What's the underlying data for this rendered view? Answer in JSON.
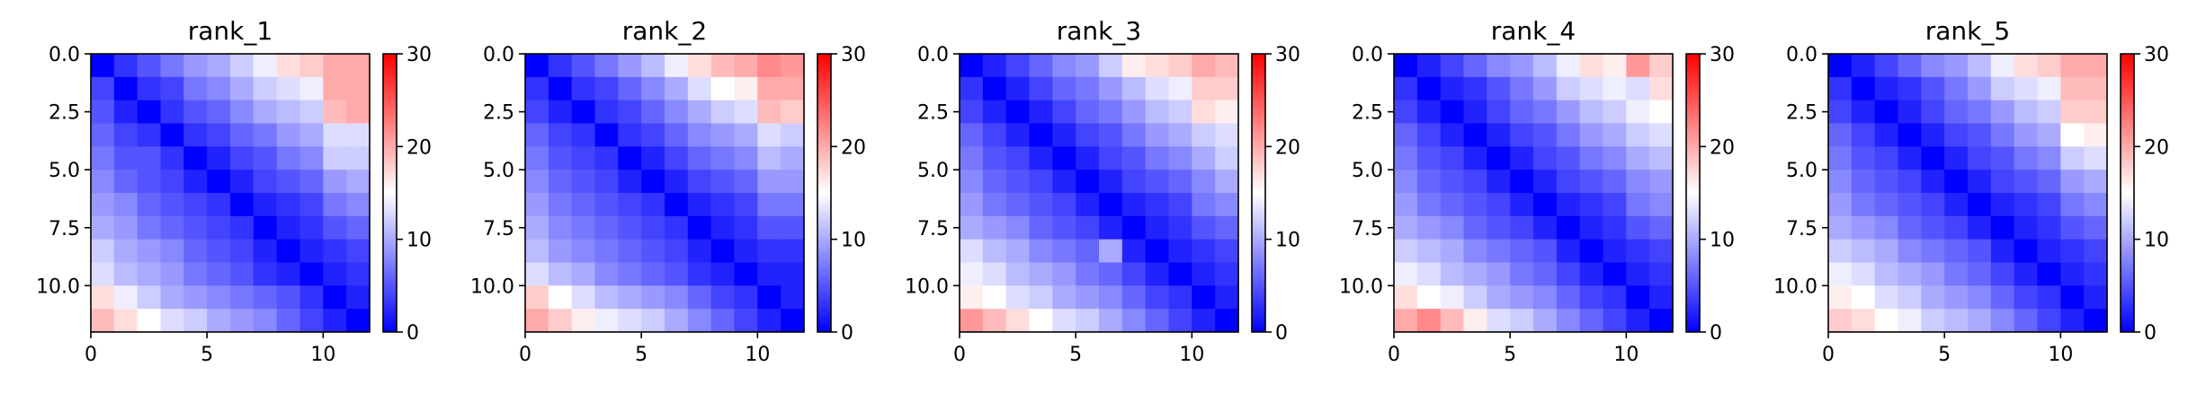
{
  "chart_data": {
    "type": "heatmap",
    "colormap": [
      "#0000ff",
      "#ffffff",
      "#ff0000"
    ],
    "color_range": [
      0,
      30
    ],
    "colorbar_ticks": [
      0,
      10,
      20,
      30
    ],
    "x_ticks": [
      0,
      5,
      10
    ],
    "y_ticks": [
      "0.0",
      "2.5",
      "5.0",
      "7.5",
      "10.0"
    ],
    "extent": [
      0,
      12,
      0,
      12
    ],
    "panels": [
      {
        "title": "rank_1",
        "matrix": [
          [
            0,
            3,
            5,
            7,
            9,
            10,
            12,
            14,
            17,
            18,
            20,
            20
          ],
          [
            4,
            0,
            3,
            4,
            7,
            8,
            10,
            12,
            13,
            14,
            20,
            20
          ],
          [
            5,
            2,
            0,
            3,
            5,
            6,
            8,
            10,
            11,
            12,
            19,
            20
          ],
          [
            6,
            4,
            3,
            0,
            3,
            4,
            6,
            7,
            9,
            10,
            13,
            13
          ],
          [
            7,
            5,
            5,
            3,
            0,
            2,
            4,
            5,
            7,
            8,
            12,
            12
          ],
          [
            8,
            6,
            5,
            4,
            2,
            0,
            2,
            4,
            5,
            6,
            9,
            10
          ],
          [
            9,
            8,
            6,
            5,
            4,
            3,
            0,
            2,
            3,
            4,
            7,
            8
          ],
          [
            10,
            9,
            7,
            6,
            5,
            4,
            3,
            0,
            2,
            3,
            5,
            6
          ],
          [
            12,
            10,
            9,
            8,
            6,
            5,
            4,
            2,
            0,
            2,
            3,
            4
          ],
          [
            13,
            11,
            10,
            9,
            7,
            6,
            5,
            3,
            2,
            0,
            2,
            3
          ],
          [
            17,
            14,
            12,
            10,
            9,
            8,
            7,
            6,
            5,
            3,
            0,
            2
          ],
          [
            19,
            17,
            15,
            13,
            12,
            10,
            9,
            8,
            6,
            4,
            2,
            0
          ]
        ]
      },
      {
        "title": "rank_2",
        "matrix": [
          [
            0,
            3,
            5,
            7,
            9,
            11,
            14,
            17,
            19,
            20,
            22,
            21
          ],
          [
            3,
            0,
            3,
            4,
            6,
            8,
            10,
            13,
            15,
            16,
            20,
            20
          ],
          [
            4,
            2,
            0,
            3,
            4,
            6,
            8,
            10,
            12,
            13,
            19,
            18
          ],
          [
            6,
            4,
            3,
            0,
            3,
            4,
            6,
            8,
            9,
            10,
            13,
            12
          ],
          [
            7,
            5,
            4,
            3,
            0,
            2,
            4,
            6,
            7,
            8,
            11,
            10
          ],
          [
            8,
            6,
            5,
            4,
            2,
            0,
            2,
            4,
            5,
            6,
            9,
            9
          ],
          [
            9,
            7,
            6,
            5,
            4,
            3,
            0,
            2,
            3,
            4,
            7,
            7
          ],
          [
            10,
            8,
            7,
            6,
            5,
            4,
            3,
            0,
            2,
            3,
            5,
            5
          ],
          [
            11,
            9,
            8,
            7,
            6,
            5,
            4,
            2,
            0,
            2,
            3,
            3
          ],
          [
            13,
            11,
            10,
            8,
            7,
            6,
            5,
            3,
            2,
            0,
            2,
            2
          ],
          [
            18,
            15,
            13,
            11,
            10,
            9,
            8,
            6,
            4,
            3,
            0,
            2
          ],
          [
            20,
            18,
            16,
            14,
            13,
            12,
            10,
            8,
            6,
            4,
            2,
            0
          ]
        ]
      },
      {
        "title": "rank_3",
        "matrix": [
          [
            0,
            2,
            4,
            6,
            8,
            9,
            12,
            16,
            17,
            18,
            20,
            19
          ],
          [
            3,
            0,
            2,
            4,
            6,
            7,
            9,
            11,
            13,
            14,
            18,
            18
          ],
          [
            4,
            2,
            0,
            2,
            4,
            6,
            7,
            9,
            11,
            12,
            17,
            16
          ],
          [
            6,
            4,
            2,
            0,
            2,
            4,
            5,
            7,
            9,
            10,
            12,
            13
          ],
          [
            7,
            5,
            4,
            2,
            0,
            2,
            4,
            5,
            7,
            8,
            10,
            12
          ],
          [
            8,
            6,
            5,
            4,
            2,
            0,
            2,
            4,
            5,
            6,
            8,
            10
          ],
          [
            9,
            7,
            6,
            5,
            4,
            2,
            0,
            2,
            3,
            4,
            7,
            8
          ],
          [
            10,
            9,
            8,
            6,
            5,
            4,
            2,
            0,
            2,
            3,
            5,
            6
          ],
          [
            13,
            11,
            10,
            8,
            7,
            6,
            10,
            2,
            0,
            2,
            3,
            4
          ],
          [
            14,
            13,
            11,
            10,
            9,
            7,
            6,
            4,
            2,
            0,
            2,
            3
          ],
          [
            16,
            15,
            13,
            12,
            10,
            9,
            8,
            6,
            4,
            3,
            0,
            2
          ],
          [
            21,
            19,
            17,
            15,
            13,
            12,
            10,
            8,
            6,
            4,
            2,
            0
          ]
        ]
      },
      {
        "title": "rank_4",
        "matrix": [
          [
            0,
            2,
            4,
            6,
            8,
            9,
            11,
            14,
            17,
            16,
            21,
            18
          ],
          [
            3,
            0,
            2,
            3,
            5,
            7,
            9,
            12,
            13,
            14,
            13,
            17
          ],
          [
            4,
            2,
            0,
            2,
            4,
            6,
            7,
            9,
            11,
            12,
            14,
            15
          ],
          [
            6,
            4,
            2,
            0,
            2,
            4,
            5,
            7,
            9,
            10,
            12,
            13
          ],
          [
            7,
            5,
            4,
            2,
            0,
            2,
            4,
            5,
            7,
            8,
            10,
            11
          ],
          [
            8,
            6,
            5,
            4,
            2,
            0,
            2,
            4,
            5,
            6,
            8,
            9
          ],
          [
            9,
            7,
            6,
            5,
            4,
            2,
            0,
            2,
            3,
            4,
            7,
            8
          ],
          [
            10,
            9,
            8,
            6,
            5,
            4,
            2,
            0,
            2,
            3,
            5,
            6
          ],
          [
            12,
            11,
            10,
            8,
            7,
            6,
            5,
            2,
            0,
            2,
            3,
            4
          ],
          [
            14,
            13,
            11,
            10,
            9,
            7,
            6,
            4,
            2,
            0,
            2,
            3
          ],
          [
            17,
            15,
            14,
            12,
            10,
            9,
            8,
            6,
            4,
            3,
            0,
            2
          ],
          [
            20,
            22,
            19,
            16,
            13,
            12,
            10,
            8,
            6,
            4,
            2,
            0
          ]
        ]
      },
      {
        "title": "rank_5",
        "matrix": [
          [
            0,
            2,
            4,
            6,
            8,
            9,
            11,
            14,
            17,
            18,
            20,
            20
          ],
          [
            3,
            0,
            2,
            3,
            5,
            7,
            9,
            12,
            13,
            14,
            19,
            19
          ],
          [
            4,
            2,
            0,
            2,
            4,
            6,
            7,
            9,
            11,
            12,
            18,
            18
          ],
          [
            6,
            4,
            2,
            0,
            2,
            4,
            5,
            7,
            9,
            10,
            15,
            16
          ],
          [
            7,
            5,
            4,
            2,
            0,
            2,
            4,
            5,
            7,
            8,
            12,
            13
          ],
          [
            8,
            6,
            5,
            4,
            2,
            0,
            2,
            4,
            5,
            6,
            9,
            10
          ],
          [
            9,
            7,
            6,
            5,
            4,
            2,
            0,
            2,
            3,
            4,
            7,
            8
          ],
          [
            10,
            9,
            8,
            6,
            5,
            4,
            2,
            0,
            2,
            3,
            5,
            6
          ],
          [
            12,
            11,
            10,
            8,
            7,
            6,
            5,
            2,
            0,
            2,
            3,
            4
          ],
          [
            14,
            13,
            11,
            10,
            9,
            7,
            6,
            4,
            2,
            0,
            2,
            3
          ],
          [
            16,
            15,
            13,
            12,
            10,
            9,
            8,
            6,
            4,
            3,
            0,
            2
          ],
          [
            18,
            17,
            15,
            14,
            12,
            11,
            10,
            8,
            6,
            4,
            2,
            0
          ]
        ]
      }
    ]
  }
}
